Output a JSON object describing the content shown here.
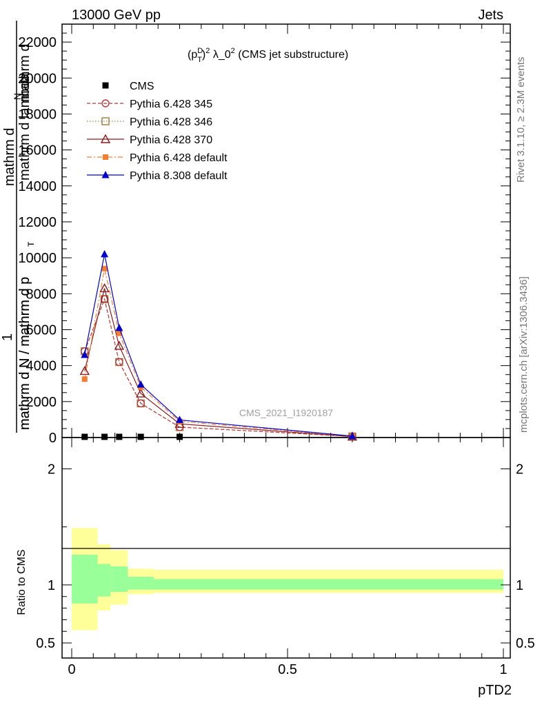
{
  "header": {
    "left": "13000 GeV pp",
    "right": "Jets"
  },
  "side_labels": {
    "rivet": "Rivet 3.1.10, ≥ 2.3M events",
    "mcplots": "mcplots.cern.ch [arXiv:1306.3436]"
  },
  "watermark": "CMS_2021_I1920187",
  "colors": {
    "cms": "#000000",
    "p345": "#b8383b",
    "p346": "#9c7b3c",
    "p370": "#8b1a1a",
    "p6def": "#f47d30",
    "p8def": "#0000cc",
    "band_inner": "#99ff99",
    "band_outer": "#ffff99"
  },
  "chart_data": [
    {
      "type": "line",
      "title": "(p_T^D)^2 λ_0^2 (CMS jet substructure)",
      "title_parts": {
        "pre": "(p",
        "sup1": "D",
        "sub1": "T",
        "sup2": "2",
        "mid": " λ_0",
        "sup3": "2",
        "post": " (CMS jet substructure)"
      },
      "ylabel_parts": [
        "1",
        "mathrm d N / mathrm d p",
        "T",
        "mathrm d N / mathrm d p",
        "T",
        "mathrm d",
        "mathrm d lambda",
        "mathrm d",
        "N"
      ],
      "xlabel": "pTD2",
      "xlim": [
        0,
        1
      ],
      "ylim": [
        0,
        23000
      ],
      "yticks": [
        0,
        2000,
        4000,
        6000,
        8000,
        10000,
        12000,
        14000,
        16000,
        18000,
        20000,
        22000
      ],
      "ytick_labels": [
        "0",
        "2000",
        "4000",
        "6000",
        "8000",
        "10000",
        "12000",
        "14000",
        "16000",
        "18000",
        "20000",
        "22000"
      ],
      "x": [
        0.03,
        0.076,
        0.11,
        0.16,
        0.25,
        0.65
      ],
      "series": [
        {
          "name": "CMS",
          "key": "cms",
          "values": [
            30,
            30,
            30,
            30,
            30,
            0
          ]
        },
        {
          "name": "Pythia 6.428 345",
          "key": "p345",
          "values": [
            4800,
            7700,
            4200,
            1900,
            580,
            60
          ]
        },
        {
          "name": "Pythia 6.428 346",
          "key": "p346",
          "values": [
            4800,
            7700,
            4200,
            1900,
            580,
            60
          ]
        },
        {
          "name": "Pythia 6.428 370",
          "key": "p370",
          "values": [
            3700,
            8300,
            5100,
            2450,
            760,
            50
          ]
        },
        {
          "name": "Pythia 6.428 default",
          "key": "p6def",
          "values": [
            3250,
            9400,
            5800,
            2800,
            900,
            70
          ]
        },
        {
          "name": "Pythia 8.308 default",
          "key": "p8def",
          "values": [
            4600,
            10200,
            6100,
            2950,
            980,
            80
          ]
        }
      ]
    },
    {
      "type": "area",
      "ylabel": "Ratio to CMS",
      "xlim": [
        0,
        1
      ],
      "ylim": [
        0.37,
        2.27
      ],
      "yticks": [
        0.5,
        1,
        2
      ],
      "ytick_labels": [
        "0.5",
        "1",
        "2"
      ],
      "xticks": [
        0,
        0.5,
        1
      ],
      "xtick_labels": [
        "0",
        "0.5",
        "1"
      ],
      "bins": [
        {
          "x0": 0.0,
          "x1": 0.06,
          "inner": [
            0.84,
            1.26
          ],
          "outer": [
            0.61,
            1.49
          ]
        },
        {
          "x0": 0.06,
          "x1": 0.09,
          "inner": [
            0.9,
            1.18
          ],
          "outer": [
            0.78,
            1.35
          ]
        },
        {
          "x0": 0.09,
          "x1": 0.13,
          "inner": [
            0.94,
            1.16
          ],
          "outer": [
            0.83,
            1.3
          ]
        },
        {
          "x0": 0.13,
          "x1": 0.19,
          "inner": [
            0.96,
            1.07
          ],
          "outer": [
            0.92,
            1.14
          ]
        },
        {
          "x0": 0.19,
          "x1": 1.0,
          "inner": [
            0.96,
            1.05
          ],
          "outer": [
            0.93,
            1.13
          ]
        }
      ]
    }
  ]
}
